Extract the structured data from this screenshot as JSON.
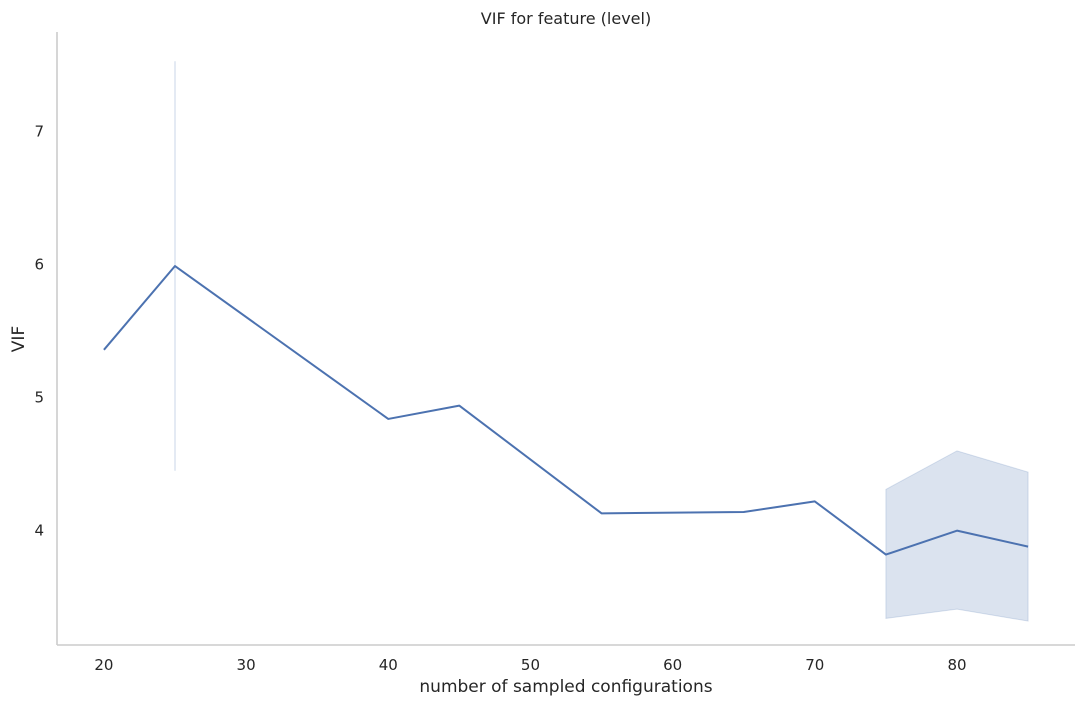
{
  "chart_data": {
    "type": "line",
    "title": "VIF for feature (level)",
    "xlabel": "number of sampled configurations",
    "ylabel": "VIF",
    "xlim": [
      16.7,
      88.3
    ],
    "ylim": [
      3.14,
      7.75
    ],
    "xticks": [
      20,
      30,
      40,
      50,
      60,
      70,
      80
    ],
    "yticks": [
      4,
      5,
      6,
      7
    ],
    "grid": false,
    "series": [
      {
        "x": [
          20,
          25,
          40,
          45,
          55,
          65,
          70,
          75,
          80,
          85
        ],
        "y": [
          5.36,
          5.99,
          4.84,
          4.94,
          4.13,
          4.14,
          4.22,
          3.82,
          4.0,
          3.88
        ],
        "ci_low": [
          null,
          4.45,
          null,
          null,
          null,
          null,
          null,
          3.34,
          3.41,
          3.32
        ],
        "ci_high": [
          null,
          7.53,
          null,
          null,
          null,
          null,
          null,
          4.31,
          4.6,
          4.44
        ]
      }
    ]
  }
}
